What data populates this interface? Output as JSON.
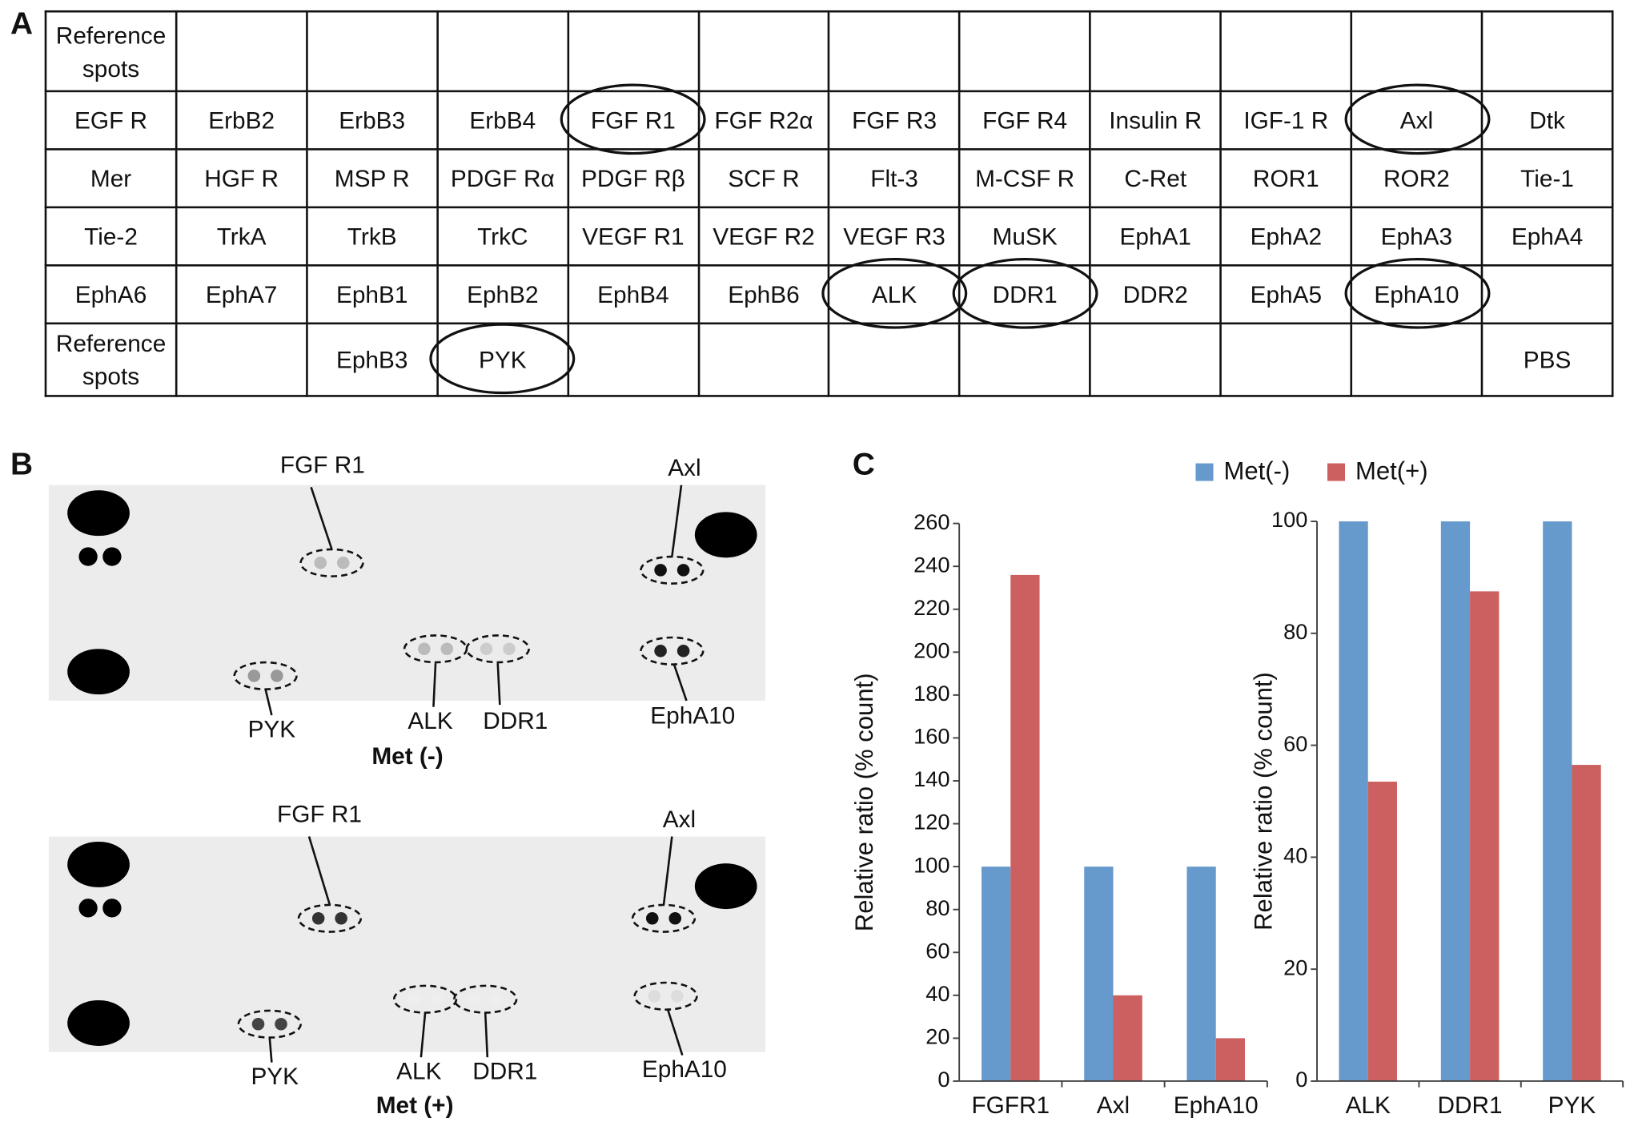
{
  "panels": [
    "A",
    "B",
    "C"
  ],
  "table": {
    "rows": [
      [
        "Reference spots",
        null,
        null,
        null,
        null,
        null,
        null,
        null,
        null,
        null,
        null,
        null
      ],
      [
        "EGF R",
        "ErbB2",
        "ErbB3",
        "ErbB4",
        "FGF R1",
        "FGF R2α",
        "FGF R3",
        "FGF R4",
        "Insulin R",
        "IGF-1 R",
        "Axl",
        "Dtk"
      ],
      [
        "Mer",
        "HGF R",
        "MSP R",
        "PDGF Rα",
        "PDGF Rβ",
        "SCF R",
        "Flt-3",
        "M-CSF R",
        "C-Ret",
        "ROR1",
        "ROR2",
        "Tie-1"
      ],
      [
        "Tie-2",
        "TrkA",
        "TrkB",
        "TrkC",
        "VEGF R1",
        "VEGF R2",
        "VEGF R3",
        "MuSK",
        "EphA1",
        "EphA2",
        "EphA3",
        "EphA4"
      ],
      [
        "EphA6",
        "EphA7",
        "EphB1",
        "EphB2",
        "EphB4",
        "EphB6",
        "ALK",
        "DDR1",
        "DDR2",
        "EphA5",
        "EphA10",
        null
      ],
      [
        "Reference spots",
        null,
        "EphB3",
        "PYK",
        null,
        null,
        null,
        null,
        null,
        null,
        null,
        "PBS"
      ]
    ],
    "circled": [
      [
        1,
        4
      ],
      [
        1,
        10
      ],
      [
        4,
        6
      ],
      [
        4,
        7
      ],
      [
        4,
        10
      ],
      [
        5,
        3
      ]
    ]
  },
  "blots": [
    {
      "title": "Met (-)",
      "labels": [
        "FGF R1",
        "Axl",
        "PYK",
        "ALK",
        "DDR1",
        "EphA10"
      ]
    },
    {
      "title": "Met (+)",
      "labels": [
        "FGF R1",
        "Axl",
        "PYK",
        "ALK",
        "DDR1",
        "EphA10"
      ]
    }
  ],
  "chart_data": [
    {
      "type": "bar",
      "y_label": "Relative ratio (% count)",
      "categories": [
        "FGFR1",
        "Axl",
        "EphA10"
      ],
      "series": [
        {
          "name": "Met(-)",
          "color": "#6699cc",
          "values": [
            100,
            100,
            100
          ]
        },
        {
          "name": "Met(+)",
          "color": "#cc6060",
          "values": [
            236,
            40,
            20
          ]
        }
      ],
      "ylim": [
        0,
        260
      ],
      "yticks": [
        0,
        20,
        40,
        60,
        80,
        100,
        120,
        140,
        160,
        180,
        200,
        220,
        240,
        260
      ]
    },
    {
      "type": "bar",
      "y_label": "Relative ratio (% count)",
      "categories": [
        "ALK",
        "DDR1",
        "PYK"
      ],
      "series": [
        {
          "color": "#6699cc",
          "values": [
            100,
            100,
            100
          ]
        },
        {
          "color": "#cc6060",
          "values": [
            53.5,
            87.5,
            56.5
          ]
        }
      ],
      "ylim": [
        0,
        100
      ],
      "yticks": [
        0,
        20,
        40,
        60,
        80,
        100
      ]
    }
  ]
}
